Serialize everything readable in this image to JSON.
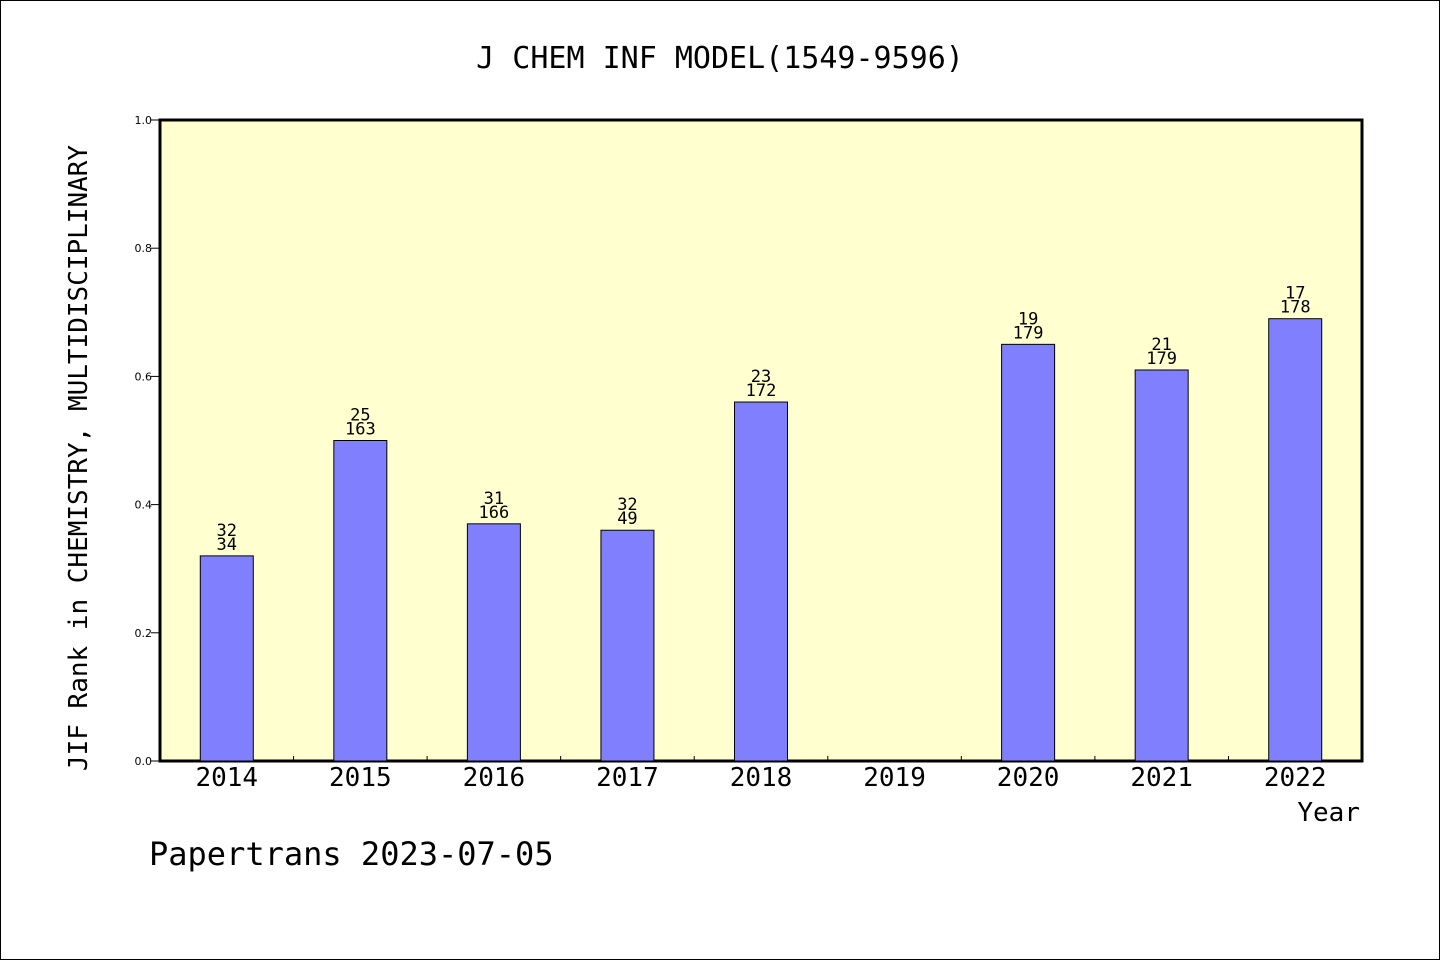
{
  "chart_data": {
    "type": "bar",
    "title": "J CHEM INF MODEL(1549-9596)",
    "xlabel": "Year",
    "ylabel": "JIF Rank in CHEMISTRY, MULTIDISCIPLINARY",
    "ylim": [
      0,
      1.0
    ],
    "yticks": [
      "0.0",
      "0.2",
      "0.4",
      "0.6",
      "0.8",
      "1.0"
    ],
    "ytick_values": [
      0,
      0.2,
      0.4,
      0.6,
      0.8,
      1.0
    ],
    "categories": [
      "2014",
      "2015",
      "2016",
      "2017",
      "2018",
      "2019",
      "2020",
      "2021",
      "2022"
    ],
    "values": [
      0.32,
      0.5,
      0.37,
      0.36,
      0.56,
      null,
      0.65,
      0.61,
      0.69
    ],
    "labels": [
      {
        "rank": "32",
        "total": "34"
      },
      {
        "rank": "25",
        "total": "163"
      },
      {
        "rank": "31",
        "total": "166"
      },
      {
        "rank": "32",
        "total": "49"
      },
      {
        "rank": "23",
        "total": "172"
      },
      null,
      {
        "rank": "19",
        "total": "179"
      },
      {
        "rank": "21",
        "total": "179"
      },
      {
        "rank": "17",
        "total": "178"
      }
    ],
    "grid": false,
    "colors": {
      "plot_background": "#ffffd0",
      "bar_fill": "#8080ff",
      "bar_stroke": "#000000"
    }
  },
  "footer": {
    "text": "Papertrans 2023-07-05"
  }
}
